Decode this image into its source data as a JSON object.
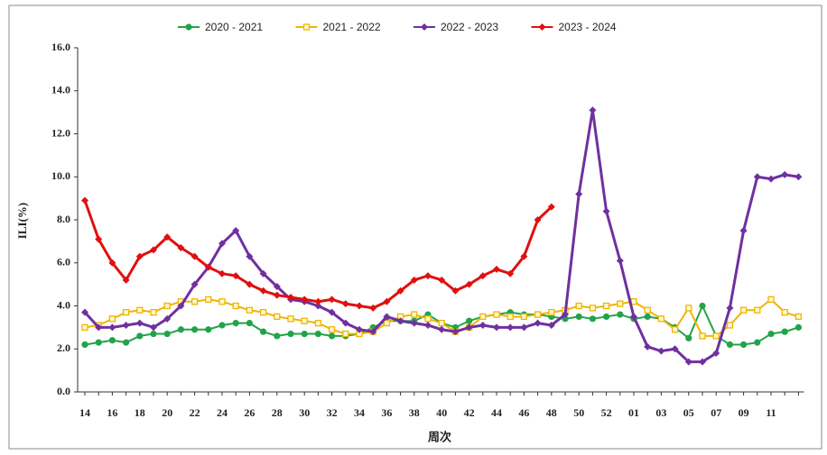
{
  "chart_data": {
    "type": "line",
    "y_label": "ILI(%)",
    "x_label": "周次",
    "categories": [
      "14",
      null,
      "16",
      null,
      "18",
      null,
      "20",
      null,
      "22",
      null,
      "24",
      null,
      "26",
      null,
      "28",
      null,
      "30",
      null,
      "32",
      null,
      "34",
      null,
      "36",
      null,
      "38",
      null,
      "40",
      null,
      "42",
      null,
      "44",
      null,
      "46",
      null,
      "48",
      null,
      "50",
      null,
      "52",
      null,
      "01",
      null,
      "03",
      null,
      "05",
      null,
      "07",
      null,
      "09",
      null,
      "11",
      null,
      null
    ],
    "ylim": [
      0,
      16
    ],
    "yticks": [
      {
        "value": 0,
        "label": "0.0"
      },
      {
        "value": 2,
        "label": "2.0"
      },
      {
        "value": 4,
        "label": "4.0"
      },
      {
        "value": 6,
        "label": "6.0"
      },
      {
        "value": 8,
        "label": "8.0"
      },
      {
        "value": 10,
        "label": "10.0"
      },
      {
        "value": 12,
        "label": "12.0"
      },
      {
        "value": 14,
        "label": "14.0"
      },
      {
        "value": 16,
        "label": "16.0"
      }
    ],
    "series": [
      {
        "name": "2020 - 2021",
        "color": "#22a34a",
        "marker": "circle",
        "values": [
          2.2,
          2.3,
          2.4,
          2.3,
          2.6,
          2.7,
          2.7,
          2.9,
          2.9,
          2.9,
          3.1,
          3.2,
          3.2,
          2.8,
          2.6,
          2.7,
          2.7,
          2.7,
          2.6,
          2.6,
          2.7,
          3.0,
          3.3,
          3.3,
          3.3,
          3.6,
          3.2,
          3.0,
          3.3,
          3.5,
          3.6,
          3.7,
          3.6,
          3.6,
          3.5,
          3.4,
          3.5,
          3.4,
          3.5,
          3.6,
          3.4,
          3.5,
          3.4,
          3.0,
          2.5,
          4.0,
          2.6,
          2.2,
          2.2,
          2.3,
          2.7,
          2.8,
          3.0
        ]
      },
      {
        "name": "2021 - 2022",
        "color": "#f0b400",
        "marker": "square",
        "values": [
          3.0,
          3.1,
          3.4,
          3.7,
          3.8,
          3.7,
          4.0,
          4.2,
          4.2,
          4.3,
          4.2,
          4.0,
          3.8,
          3.7,
          3.5,
          3.4,
          3.3,
          3.2,
          2.9,
          2.7,
          2.7,
          2.8,
          3.2,
          3.5,
          3.6,
          3.4,
          3.2,
          2.8,
          3.0,
          3.5,
          3.6,
          3.5,
          3.5,
          3.6,
          3.7,
          3.8,
          4.0,
          3.9,
          4.0,
          4.1,
          4.2,
          3.8,
          3.4,
          2.9,
          3.9,
          2.6,
          2.6,
          3.1,
          3.8,
          3.8,
          4.3,
          3.7,
          3.5
        ]
      },
      {
        "name": "2022 - 2023",
        "color": "#7030a0",
        "marker": "diamond",
        "values": [
          3.7,
          3.0,
          3.0,
          3.1,
          3.2,
          3.0,
          3.4,
          4.0,
          5.0,
          5.8,
          6.9,
          7.5,
          6.3,
          5.5,
          4.9,
          4.3,
          4.2,
          4.0,
          3.7,
          3.2,
          2.9,
          2.8,
          3.5,
          3.3,
          3.2,
          3.1,
          2.9,
          2.8,
          3.0,
          3.1,
          3.0,
          3.0,
          3.0,
          3.2,
          3.1,
          3.6,
          9.2,
          13.1,
          8.4,
          6.1,
          3.5,
          2.1,
          1.9,
          2.0,
          1.4,
          1.4,
          1.8,
          3.9,
          7.5,
          10.0,
          9.9,
          10.1,
          10.0
        ]
      },
      {
        "name": "2023 - 2024",
        "color": "#e01010",
        "marker": "diamond",
        "values": [
          8.9,
          7.1,
          6.0,
          5.2,
          6.3,
          6.6,
          7.2,
          6.7,
          6.3,
          5.8,
          5.5,
          5.4,
          5.0,
          4.7,
          4.5,
          4.4,
          4.3,
          4.2,
          4.3,
          4.1,
          4.0,
          3.9,
          4.2,
          4.7,
          5.2,
          5.4,
          5.2,
          4.7,
          5.0,
          5.4,
          5.7,
          5.5,
          6.3,
          8.0,
          8.6,
          null,
          null,
          null,
          null,
          null,
          null,
          null,
          null,
          null,
          null,
          null,
          null,
          null,
          null,
          null,
          null,
          null,
          null
        ]
      }
    ]
  }
}
